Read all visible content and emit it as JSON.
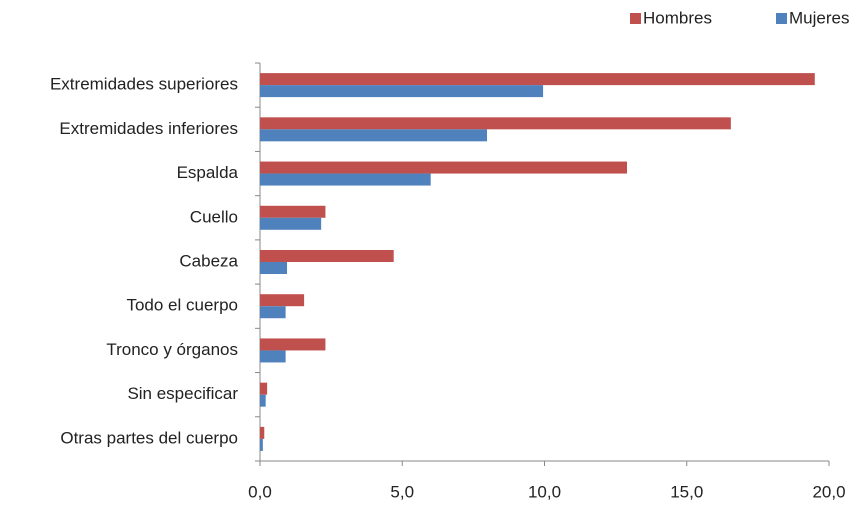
{
  "chart_data": {
    "type": "hbar",
    "categories": [
      "Extremidades superiores",
      "Extremidades inferiores",
      "Espalda",
      "Cuello",
      "Cabeza",
      "Todo el cuerpo",
      "Tronco y órganos",
      "Sin especificar",
      "Otras partes del cuerpo"
    ],
    "series": [
      {
        "name": "Hombres",
        "color": "#c0504d",
        "values": [
          19.5,
          16.55,
          12.9,
          2.3,
          4.7,
          1.55,
          2.3,
          0.25,
          0.15
        ]
      },
      {
        "name": "Mujeres",
        "color": "#4f81bd",
        "values": [
          9.95,
          7.98,
          6.0,
          2.15,
          0.95,
          0.9,
          0.9,
          0.2,
          0.1
        ]
      }
    ],
    "xlim": [
      0,
      20
    ],
    "xticks": [
      {
        "value": 0,
        "label": "0,0"
      },
      {
        "value": 5,
        "label": "5,0"
      },
      {
        "value": 10,
        "label": "10,0"
      },
      {
        "value": 15,
        "label": "15,0"
      },
      {
        "value": 20,
        "label": "20,0"
      }
    ],
    "legend": "top-right"
  }
}
